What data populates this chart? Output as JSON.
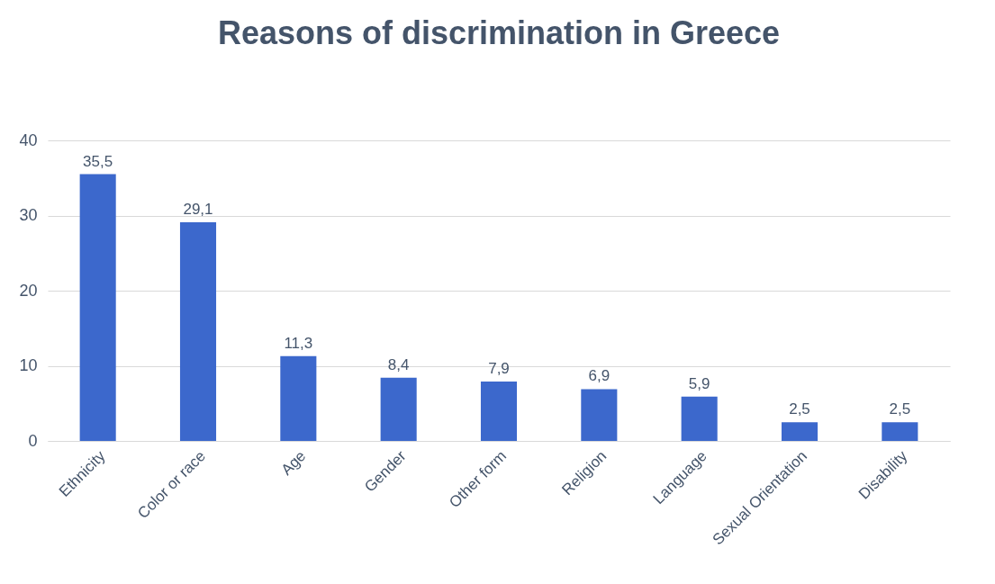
{
  "chart_data": {
    "type": "bar",
    "title": "Reasons of discrimination in Greece",
    "categories": [
      "Ethnicity",
      "Color or race",
      "Age",
      "Gender",
      "Other form",
      "Religion",
      "Language",
      "Sexual Orientation",
      "Disability"
    ],
    "values": [
      35.5,
      29.1,
      11.3,
      8.4,
      7.9,
      6.9,
      5.9,
      2.5,
      2.5
    ],
    "value_labels": [
      "35,5",
      "29,1",
      "11,3",
      "8,4",
      "7,9",
      "6,9",
      "5,9",
      "2,5",
      "2,5"
    ],
    "color": "#3c68cc",
    "ylim": [
      0,
      40
    ],
    "yticks": [
      0,
      10,
      20,
      30,
      40
    ],
    "grid": "y"
  }
}
